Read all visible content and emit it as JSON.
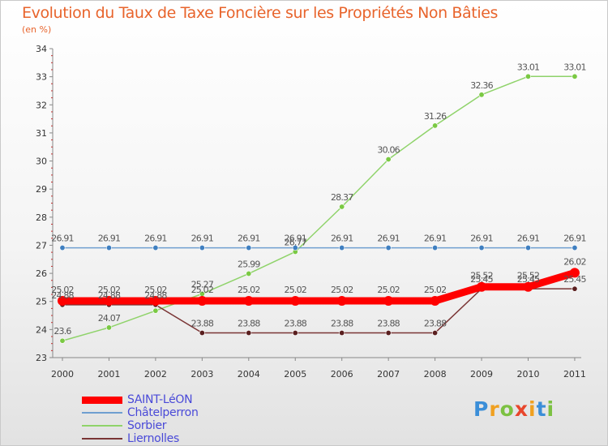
{
  "title": "Evolution du Taux de Taxe Foncière sur les Propriétés Non Bâties",
  "subtitle": "(en %)",
  "chart_data": {
    "type": "line",
    "title": "Evolution du Taux de Taxe Foncière sur les Propriétés Non Bâties",
    "ylabel": "(en %)",
    "xlabel": "",
    "ylim": [
      23,
      34
    ],
    "yticks": [
      23,
      24,
      25,
      26,
      27,
      28,
      29,
      30,
      31,
      32,
      33,
      34
    ],
    "categories": [
      "2000",
      "2001",
      "2002",
      "2003",
      "2004",
      "2005",
      "2006",
      "2007",
      "2008",
      "2009",
      "2010",
      "2011"
    ],
    "series": [
      {
        "name": "Sorbier",
        "color": "#8fd36a",
        "point_color": "#7ac943",
        "width": 1.5,
        "values": [
          23.6,
          24.07,
          24.67,
          25.27,
          25.99,
          26.77,
          28.37,
          30.06,
          31.26,
          32.36,
          33.01,
          33.01
        ]
      },
      {
        "name": "Châtelperron",
        "color": "#6f9fd0",
        "point_color": "#3f7fc0",
        "width": 1.5,
        "values": [
          26.91,
          26.91,
          26.91,
          26.91,
          26.91,
          26.91,
          26.91,
          26.91,
          26.91,
          26.91,
          26.91,
          26.91
        ]
      },
      {
        "name": "Liernolles",
        "color": "#7a3535",
        "point_color": "#5a1f1f",
        "width": 1.5,
        "values": [
          24.88,
          24.88,
          24.88,
          23.88,
          23.88,
          23.88,
          23.88,
          23.88,
          23.88,
          25.45,
          25.45,
          25.45
        ]
      },
      {
        "name": "SAINT-LéON",
        "color": "#ff0000",
        "point_color": "#ff0000",
        "width": 9,
        "values": [
          25.02,
          25.02,
          25.02,
          25.02,
          25.02,
          25.02,
          25.02,
          25.02,
          25.02,
          25.52,
          25.52,
          26.02
        ]
      }
    ],
    "data_labels": {
      "Sorbier": [
        "23.6",
        "24.07",
        "",
        "25.27",
        "25.99",
        "26.77",
        "28.37",
        "30.06",
        "31.26",
        "32.36",
        "33.01",
        "33.01"
      ],
      "Châtelperron": [
        "26.91",
        "26.91",
        "26.91",
        "26.91",
        "26.91",
        "26.91",
        "26.91",
        "26.91",
        "26.91",
        "26.91",
        "26.91",
        "26.91"
      ],
      "Liernolles": [
        "24.88",
        "24.88",
        "24.88",
        "23.88",
        "23.88",
        "23.88",
        "23.88",
        "23.88",
        "23.88",
        "25.45",
        "25.45",
        "25.45"
      ],
      "SAINT-LéON": [
        "25.02",
        "25.02",
        "25.02",
        "25.02",
        "25.02",
        "25.02",
        "25.02",
        "25.02",
        "25.02",
        "25.52",
        "25.52",
        "26.02"
      ]
    },
    "legend": [
      {
        "name": "SAINT-LéON",
        "color": "#ff0000"
      },
      {
        "name": "Châtelperron",
        "color": "#6f9fd0"
      },
      {
        "name": "Sorbier",
        "color": "#8fd36a"
      },
      {
        "name": "Liernolles",
        "color": "#7a3535"
      }
    ],
    "legend_position": "bottom-left",
    "grid": false
  },
  "logo": {
    "letters": [
      "P",
      "r",
      "o",
      "x",
      "i",
      "t",
      "i"
    ],
    "colors": [
      "#3b8ed8",
      "#f0a020",
      "#7cc142",
      "#e8462c",
      "#f0a020",
      "#3b8ed8",
      "#7cc142"
    ]
  }
}
